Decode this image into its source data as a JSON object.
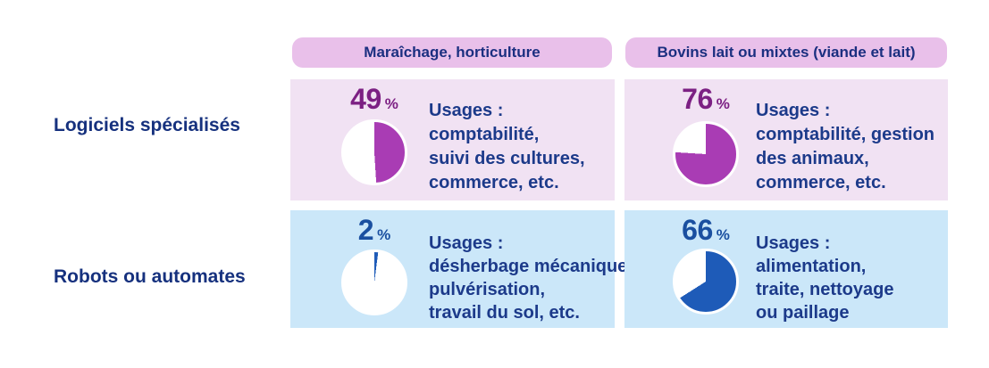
{
  "colors": {
    "header_pill_bg": "#e9c0ea",
    "row1_cell_bg": "#f1e2f3",
    "row2_cell_bg": "#cbe7f9",
    "purple_pie": "#a93cb4",
    "purple_number": "#7c2083",
    "blue_pie": "#1e5bb8",
    "blue_number": "#1a4fa0",
    "navy_text": "#1c3a8a"
  },
  "columns": [
    {
      "label": "Maraîchage, horticulture"
    },
    {
      "label": "Bovins lait ou mixtes (viande et lait)"
    }
  ],
  "rows": [
    {
      "label": "Logiciels spécialisés"
    },
    {
      "label": "Robots ou automates"
    }
  ],
  "cells": [
    {
      "value": "49",
      "unit": "%",
      "pie": {
        "percent": 49,
        "color": "#a93cb4"
      },
      "usage_lines": [
        "Usages :",
        "comptabilité,",
        "suivi des cultures,",
        "commerce, etc."
      ]
    },
    {
      "value": "76",
      "unit": "%",
      "pie": {
        "percent": 76,
        "color": "#a93cb4"
      },
      "usage_lines": [
        "Usages :",
        "comptabilité, gestion",
        "des animaux,",
        "commerce, etc."
      ]
    },
    {
      "value": "2",
      "unit": "%",
      "pie": {
        "percent": 2,
        "color": "#1e5bb8"
      },
      "usage_lines": [
        "Usages :",
        "désherbage mécanique,",
        "pulvérisation,",
        "travail du sol, etc."
      ]
    },
    {
      "value": "66",
      "unit": "%",
      "pie": {
        "percent": 66,
        "color": "#1e5bb8"
      },
      "usage_lines": [
        "Usages :",
        "alimentation,",
        "traite, nettoyage",
        "ou paillage"
      ]
    }
  ],
  "chart_data": {
    "type": "pie",
    "title": "",
    "rows": [
      "Logiciels spécialisés",
      "Robots ou automates"
    ],
    "columns": [
      "Maraîchage, horticulture",
      "Bovins lait ou mixtes (viande et lait)"
    ],
    "series": [
      {
        "name": "Logiciels spécialisés — Maraîchage, horticulture",
        "value_percent": 49,
        "remainder_percent": 51,
        "usages": "comptabilité, suivi des cultures, commerce, etc."
      },
      {
        "name": "Logiciels spécialisés — Bovins lait ou mixtes (viande et lait)",
        "value_percent": 76,
        "remainder_percent": 24,
        "usages": "comptabilité, gestion des animaux, commerce, etc."
      },
      {
        "name": "Robots ou automates — Maraîchage, horticulture",
        "value_percent": 2,
        "remainder_percent": 98,
        "usages": "désherbage mécanique, pulvérisation, travail du sol, etc."
      },
      {
        "name": "Robots ou automates — Bovins lait ou mixtes (viande et lait)",
        "value_percent": 66,
        "remainder_percent": 34,
        "usages": "alimentation, traite, nettoyage ou paillage"
      }
    ],
    "legend_position": "none",
    "grid": false
  }
}
